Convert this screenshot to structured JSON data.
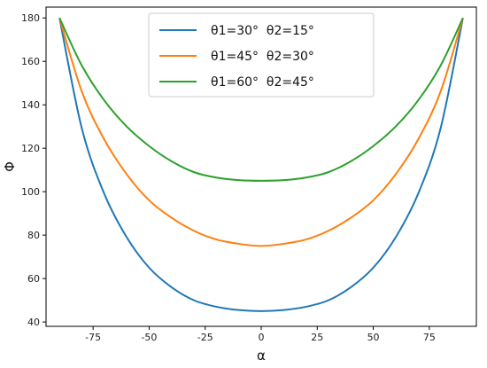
{
  "chart_data": {
    "type": "line",
    "xlabel": "α",
    "ylabel": "Φ",
    "xlim": [
      -96,
      96
    ],
    "ylim": [
      38,
      185
    ],
    "x_ticks": [
      -75,
      -50,
      -25,
      0,
      25,
      50,
      75
    ],
    "y_ticks": [
      40,
      60,
      80,
      100,
      120,
      140,
      160,
      180
    ],
    "grid": false,
    "legend_position": "top-center",
    "series": [
      {
        "name": "θ1=30°  θ2=15°",
        "color": "#1f77b4",
        "x": [
          -90,
          -80,
          -70,
          -60,
          -50,
          -40,
          -30,
          -20,
          -10,
          0,
          10,
          20,
          30,
          40,
          50,
          60,
          70,
          80,
          90
        ],
        "y": [
          180,
          129,
          99,
          79,
          65,
          56,
          50,
          47,
          45.5,
          45,
          45.5,
          47,
          50,
          56,
          65,
          79,
          99,
          129,
          180
        ]
      },
      {
        "name": "θ1=45°  θ2=30°",
        "color": "#ff7f0e",
        "x": [
          -90,
          -80,
          -70,
          -60,
          -50,
          -40,
          -30,
          -20,
          -10,
          0,
          10,
          20,
          30,
          40,
          50,
          60,
          70,
          80,
          90
        ],
        "y": [
          180,
          146,
          124,
          108,
          96,
          88,
          82,
          78,
          76,
          75,
          76,
          78,
          82,
          88,
          96,
          108,
          124,
          146,
          180
        ]
      },
      {
        "name": "θ1=60°  θ2=45°",
        "color": "#2ca02c",
        "x": [
          -90,
          -80,
          -70,
          -60,
          -50,
          -40,
          -30,
          -20,
          -10,
          0,
          10,
          20,
          30,
          40,
          50,
          60,
          70,
          80,
          90
        ],
        "y": [
          180,
          158,
          142,
          130,
          121,
          114,
          109,
          106.5,
          105.3,
          105,
          105.3,
          106.5,
          109,
          114,
          121,
          130,
          142,
          158,
          180
        ]
      }
    ]
  }
}
